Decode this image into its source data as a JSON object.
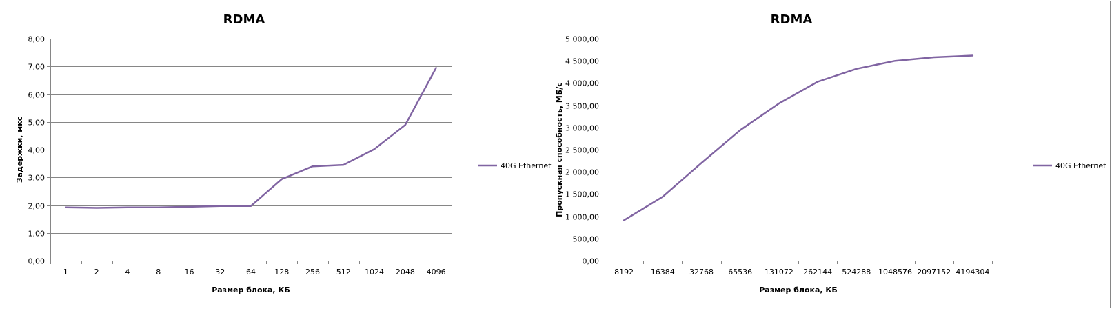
{
  "chart_data": [
    {
      "type": "line",
      "title": "RDMA",
      "xlabel": "Размер блока, КБ",
      "ylabel": "Задержки, мкс",
      "categories": [
        "1",
        "2",
        "4",
        "8",
        "16",
        "32",
        "64",
        "128",
        "256",
        "512",
        "1024",
        "2048",
        "4096"
      ],
      "series": [
        {
          "name": "40G Ethernet",
          "values": [
            1.92,
            1.9,
            1.92,
            1.92,
            1.94,
            1.97,
            1.97,
            2.94,
            3.4,
            3.45,
            4.02,
            4.89,
            6.95
          ]
        }
      ],
      "ylim": [
        0,
        8
      ],
      "yticks": [
        "0,00",
        "1,00",
        "2,00",
        "3,00",
        "4,00",
        "5,00",
        "6,00",
        "7,00",
        "8,00"
      ],
      "grid": true,
      "legend": "right",
      "colors": {
        "line": "#8064a2",
        "grid": "#868686",
        "border": "#868686"
      }
    },
    {
      "type": "line",
      "title": "RDMA",
      "xlabel": "Размер блока, КБ",
      "ylabel": "Пропускная  способность,  МБ/с",
      "categories": [
        "8192",
        "16384",
        "32768",
        "65536",
        "131072",
        "262144",
        "524288",
        "1048576",
        "2097152",
        "4194304"
      ],
      "series": [
        {
          "name": "40G Ethernet",
          "values": [
            910,
            1440,
            2200,
            2940,
            3540,
            4030,
            4320,
            4500,
            4580,
            4620
          ]
        }
      ],
      "ylim": [
        0,
        5000
      ],
      "yticks": [
        "0,00",
        "500,00",
        "1 000,00",
        "1 500,00",
        "2 000,00",
        "2 500,00",
        "3 000,00",
        "3 500,00",
        "4 000,00",
        "4 500,00",
        "5 000,00"
      ],
      "grid": true,
      "legend": "right",
      "colors": {
        "line": "#8064a2",
        "grid": "#868686",
        "border": "#868686"
      }
    }
  ]
}
